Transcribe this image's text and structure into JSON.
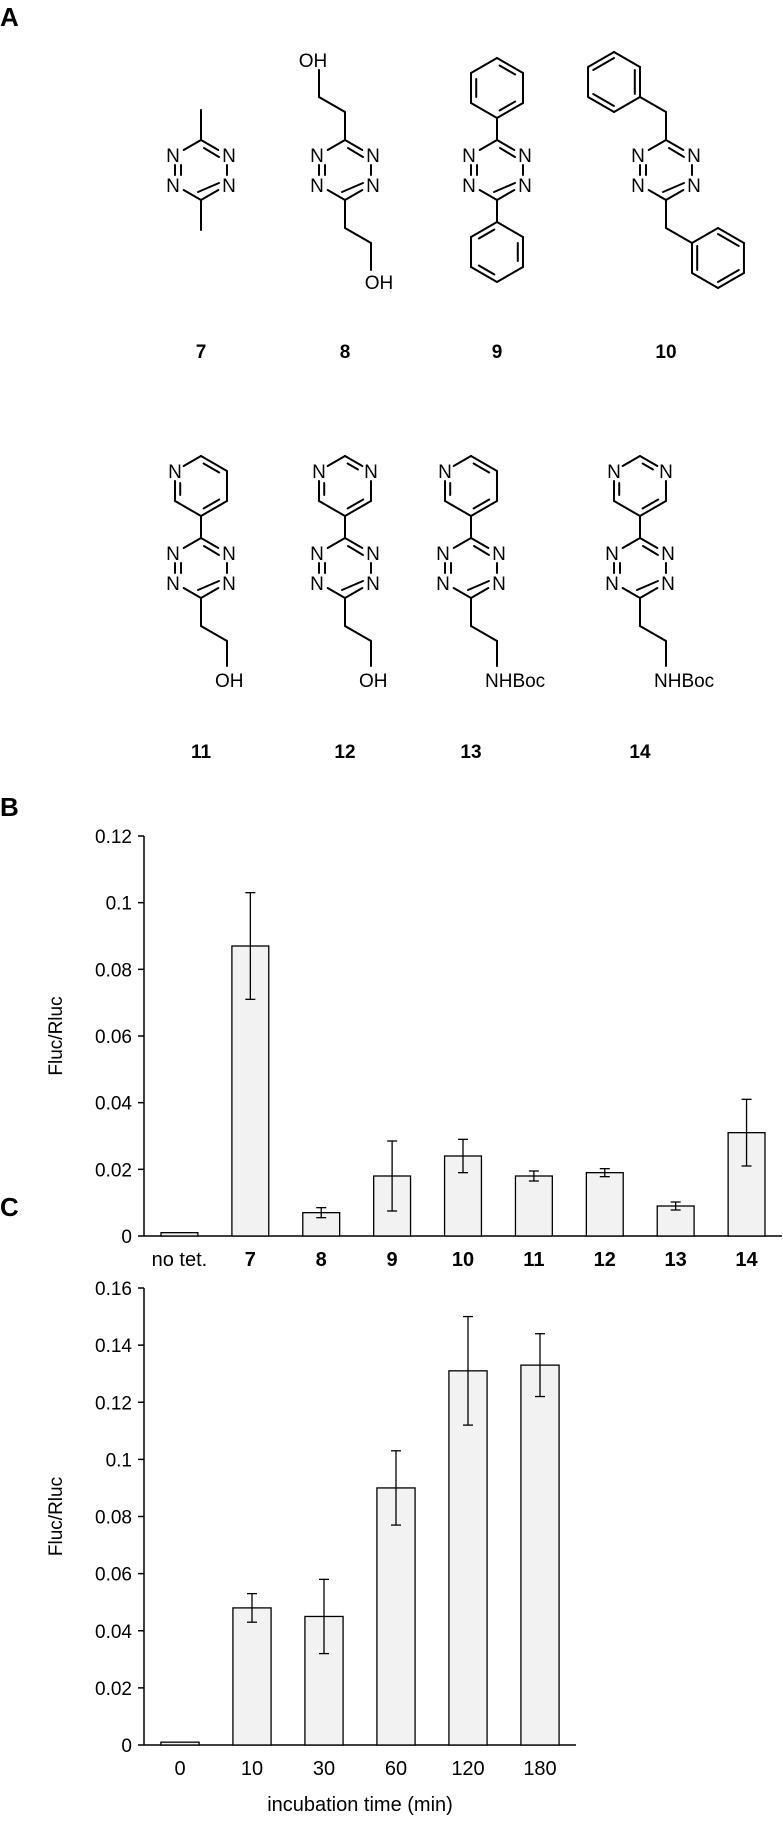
{
  "panels": {
    "a": "A",
    "b": "B",
    "c": "C"
  },
  "structures": {
    "compounds": [
      "7",
      "8",
      "9",
      "10",
      "11",
      "12",
      "13",
      "14"
    ],
    "atom_N": "N",
    "group_OH": "OH",
    "group_NHBoc": "NHBoc"
  },
  "chart_data": [
    {
      "type": "bar",
      "panel": "B",
      "categories": [
        "no tet.",
        "7",
        "8",
        "9",
        "10",
        "11",
        "12",
        "13",
        "14"
      ],
      "bold_categories": [
        "7",
        "8",
        "9",
        "10",
        "11",
        "12",
        "13",
        "14"
      ],
      "values": [
        0.001,
        0.087,
        0.007,
        0.018,
        0.024,
        0.018,
        0.019,
        0.009,
        0.031
      ],
      "errors": [
        0.0005,
        0.016,
        0.0015,
        0.0105,
        0.005,
        0.0015,
        0.0012,
        0.0012,
        0.01
      ],
      "title": "",
      "xlabel": "",
      "ylabel": "Fluc/Rluc",
      "ylim": [
        0,
        0.12
      ],
      "yticks": [
        0,
        0.02,
        0.04,
        0.06,
        0.08,
        0.1,
        0.12
      ],
      "ytick_labels": [
        "0",
        "0.02",
        "0.04",
        "0.06",
        "0.08",
        "0.1",
        "0.12"
      ],
      "grid": false,
      "legend": "none"
    },
    {
      "type": "bar",
      "panel": "C",
      "categories": [
        "0",
        "10",
        "30",
        "60",
        "120",
        "180"
      ],
      "values": [
        0.001,
        0.048,
        0.045,
        0.09,
        0.131,
        0.133
      ],
      "errors": [
        0.0005,
        0.005,
        0.013,
        0.013,
        0.019,
        0.011
      ],
      "title": "",
      "xlabel": "incubation time (min)",
      "ylabel": "Fluc/Rluc",
      "ylim": [
        0,
        0.16
      ],
      "yticks": [
        0,
        0.02,
        0.04,
        0.06,
        0.08,
        0.1,
        0.12,
        0.14,
        0.16
      ],
      "ytick_labels": [
        "0",
        "0.02",
        "0.04",
        "0.06",
        "0.08",
        "0.1",
        "0.12",
        "0.14",
        "0.16"
      ],
      "grid": false,
      "legend": "none"
    }
  ]
}
